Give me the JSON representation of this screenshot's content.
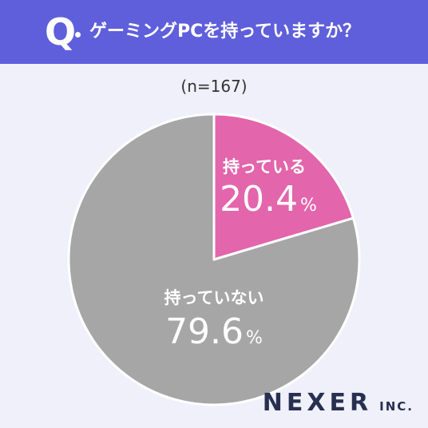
{
  "header": {
    "q_letter": "Q",
    "question": "ゲーミングPCを持っていますか？"
  },
  "sample_size": "(n=167)",
  "chart_data": {
    "type": "pie",
    "title": "ゲーミングPCを持っていますか？",
    "slices": [
      {
        "label": "持っている",
        "value": 20.4,
        "value_text": "20.4",
        "unit": "%",
        "color": "#e365ac"
      },
      {
        "label": "持っていない",
        "value": 79.6,
        "value_text": "79.6",
        "unit": "%",
        "color": "#a6a6a6"
      }
    ],
    "start": "12 o'clock",
    "direction": "clockwise"
  },
  "logo": {
    "main": "NEXER",
    "sub": "INC."
  }
}
